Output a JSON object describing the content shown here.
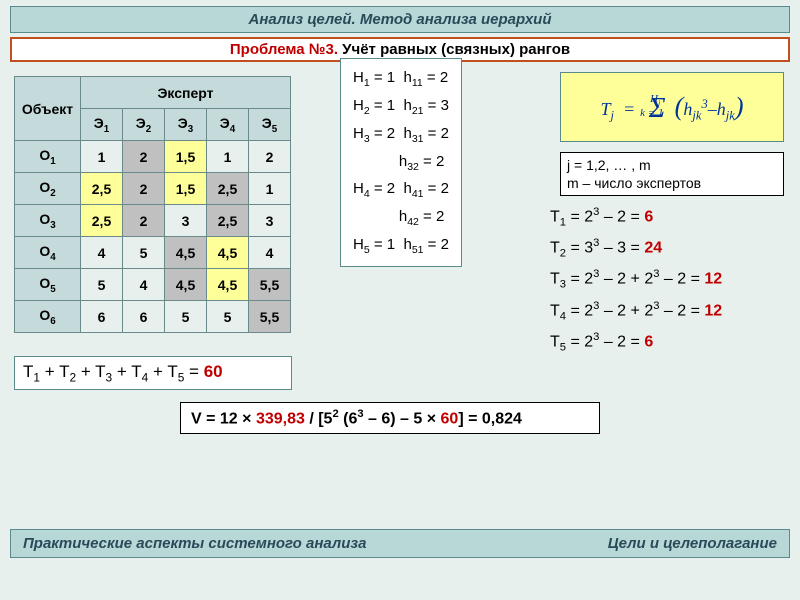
{
  "title": "Анализ целей. Метод анализа иерархий",
  "problem": {
    "label": "Проблема №3.",
    "text": "Учёт равных (связных) рангов"
  },
  "table": {
    "object_header": "Объект",
    "expert_header": "Эксперт",
    "expert_cols": [
      "Э",
      "Э",
      "Э",
      "Э",
      "Э"
    ],
    "expert_subs": [
      "1",
      "2",
      "3",
      "4",
      "5"
    ],
    "object_labels": [
      "О",
      "О",
      "О",
      "О",
      "О",
      "О"
    ],
    "object_subs": [
      "1",
      "2",
      "3",
      "4",
      "5",
      "6"
    ],
    "cells": [
      [
        {
          "v": "1",
          "c": ""
        },
        {
          "v": "2",
          "c": "g"
        },
        {
          "v": "1,5",
          "c": "y"
        },
        {
          "v": "1",
          "c": ""
        },
        {
          "v": "2",
          "c": ""
        }
      ],
      [
        {
          "v": "2,5",
          "c": "y"
        },
        {
          "v": "2",
          "c": "g"
        },
        {
          "v": "1,5",
          "c": "y"
        },
        {
          "v": "2,5",
          "c": "g"
        },
        {
          "v": "1",
          "c": ""
        }
      ],
      [
        {
          "v": "2,5",
          "c": "y"
        },
        {
          "v": "2",
          "c": "g"
        },
        {
          "v": "3",
          "c": ""
        },
        {
          "v": "2,5",
          "c": "g"
        },
        {
          "v": "3",
          "c": ""
        }
      ],
      [
        {
          "v": "4",
          "c": ""
        },
        {
          "v": "5",
          "c": ""
        },
        {
          "v": "4,5",
          "c": "g"
        },
        {
          "v": "4,5",
          "c": "y"
        },
        {
          "v": "4",
          "c": ""
        }
      ],
      [
        {
          "v": "5",
          "c": ""
        },
        {
          "v": "4",
          "c": ""
        },
        {
          "v": "4,5",
          "c": "g"
        },
        {
          "v": "4,5",
          "c": "y"
        },
        {
          "v": "5,5",
          "c": "g"
        }
      ],
      [
        {
          "v": "6",
          "c": ""
        },
        {
          "v": "6",
          "c": ""
        },
        {
          "v": "5",
          "c": ""
        },
        {
          "v": "5",
          "c": ""
        },
        {
          "v": "5,5",
          "c": "g"
        }
      ]
    ]
  },
  "h_lines": [
    [
      "H",
      "1",
      " = 1  h",
      "11",
      " = 2"
    ],
    [
      "H",
      "2",
      " = 1  h",
      "21",
      " = 3"
    ],
    [
      "H",
      "3",
      " = 2  h",
      "31",
      " = 2"
    ],
    [
      "",
      "",
      "           h",
      "32",
      " = 2"
    ],
    [
      "H",
      "4",
      " = 2  h",
      "41",
      " = 2"
    ],
    [
      "",
      "",
      "           h",
      "42",
      " = 2"
    ],
    [
      "H",
      "5",
      " = 1  h",
      "51",
      " = 2"
    ]
  ],
  "formula": {
    "lhs": "T",
    "lhs_sub": "j",
    "sum_top": "H",
    "sum_top_sub": "j",
    "sum_bot": "k = 1",
    "inside_a": "h",
    "inside_a_sub": "jk",
    "inside_a_sup": "3",
    "inside_b": "h",
    "inside_b_sub": "jk"
  },
  "j_note": {
    "l1": "j = 1,2, … , m",
    "l2": "m  – число экспертов"
  },
  "t_eqs": [
    {
      "pre": "T",
      "sub": "1",
      "expr": " = 2",
      "sup1": "3",
      "mid": " – 2 = ",
      "res": "6"
    },
    {
      "pre": "T",
      "sub": "2",
      "expr": " = 3",
      "sup1": "3",
      "mid": " – 3 = ",
      "res": "24"
    },
    {
      "pre": "T",
      "sub": "3",
      "expr": " = 2",
      "sup1": "3",
      "mid": " – 2 + 2",
      "sup2": "3",
      "mid2": " – 2 = ",
      "res": "12"
    },
    {
      "pre": "T",
      "sub": "4",
      "expr": " = 2",
      "sup1": "3",
      "mid": " – 2 + 2",
      "sup2": "3",
      "mid2": " – 2 = ",
      "res": "12"
    },
    {
      "pre": "T",
      "sub": "5",
      "expr": " = 2",
      "sup1": "3",
      "mid": " – 2 = ",
      "res": "6"
    }
  ],
  "t_sum": {
    "expr": "T₁ + T₂ + T₃ + T₄ + T₅ = ",
    "res": "60",
    "parts": [
      "T",
      "1",
      " + T",
      "2",
      " + T",
      "3",
      " + T",
      "4",
      " + T",
      "5",
      " = "
    ]
  },
  "v_eq": {
    "pre": "V = 12 × ",
    "red1": "339,83",
    "mid1": " / [5",
    "sup1": "2",
    "mid2": " (6",
    "sup2": "3",
    "mid3": " – 6) – 5 × ",
    "red2": "60",
    "tail": "]  =  0,824"
  },
  "footer": {
    "left": "Практические аспекты системного анализа",
    "right": "Цели и целеполагание"
  },
  "colors": {
    "bg": "#e8f0ed",
    "header_bg": "#b8d8d8",
    "border": "#5a8a8a",
    "problem_border": "#c05020",
    "red": "#c00000",
    "cell_gray": "#c0c0c0",
    "cell_yellow": "#ffff99",
    "formula_bg": "#ffff99",
    "formula_text": "#003399"
  }
}
